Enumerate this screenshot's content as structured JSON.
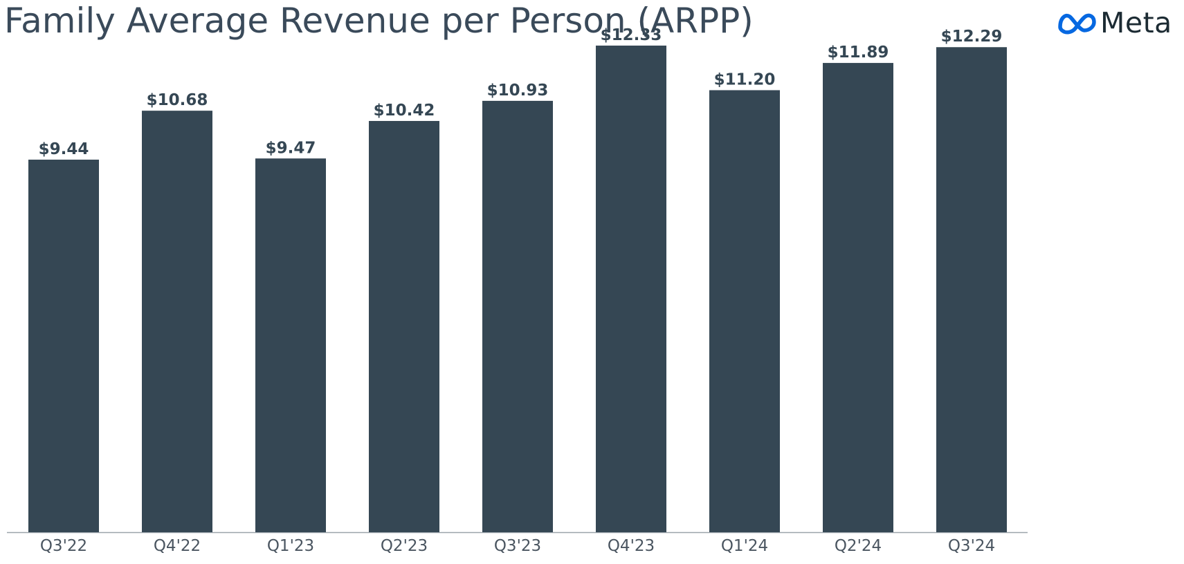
{
  "page": {
    "title": "Family Average Revenue per Person (ARPP)"
  },
  "logo": {
    "text": "Meta",
    "icon": "meta-infinity-logo",
    "icon_color": "#0668E1"
  },
  "colors": {
    "bar": "#354754",
    "bar_label": "#354754",
    "tick_label": "#4a5560",
    "axis": "#9aa3aa",
    "title": "#3a4a5a"
  },
  "chart_data": {
    "type": "bar",
    "title": "Family Average Revenue per Person (ARPP)",
    "categories": [
      "Q3'22",
      "Q4'22",
      "Q1'23",
      "Q2'23",
      "Q3'23",
      "Q4'23",
      "Q1'24",
      "Q2'24",
      "Q3'24"
    ],
    "values": [
      9.44,
      10.68,
      9.47,
      10.42,
      10.93,
      12.33,
      11.2,
      11.89,
      12.29
    ],
    "data_labels": [
      "$9.44",
      "$10.68",
      "$9.47",
      "$10.42",
      "$10.93",
      "$12.33",
      "$11.20",
      "$11.89",
      "$12.29"
    ],
    "xlabel": "",
    "ylabel": "",
    "ylim": [
      0,
      14
    ],
    "grid": false,
    "legend": "none"
  }
}
